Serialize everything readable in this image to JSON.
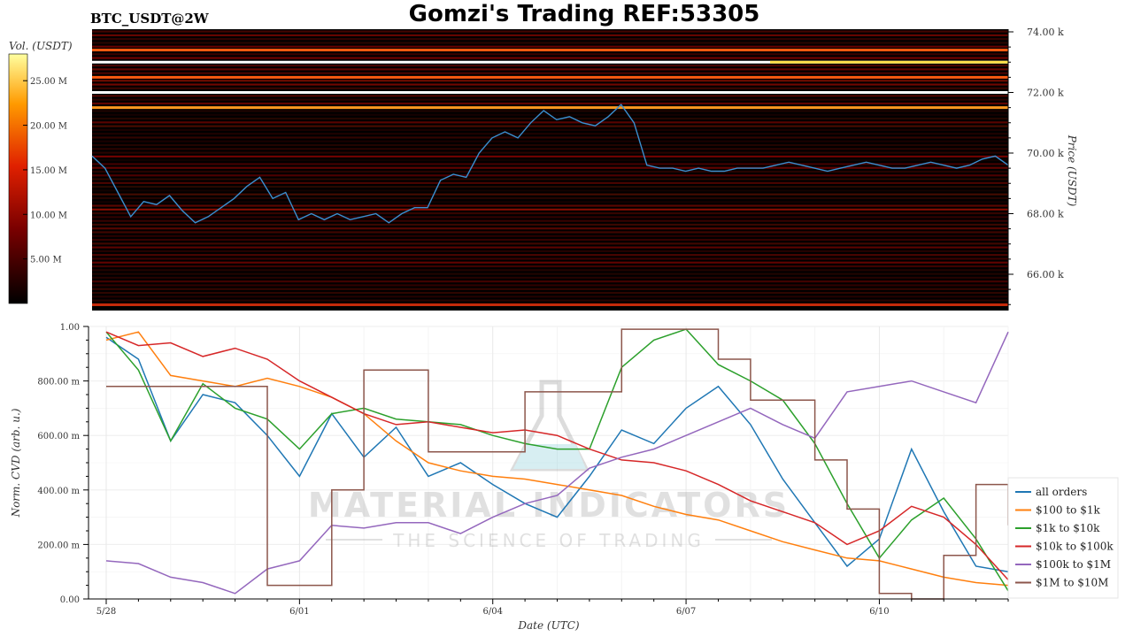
{
  "header": {
    "title": "Gomzi's Trading REF:53305",
    "symbol": "BTC_USDT@2W"
  },
  "watermark": {
    "line1": "MATERIAL INDICATORS",
    "line2": "THE SCIENCE OF TRADING"
  },
  "colors": {
    "price_line": "#3a8fd0",
    "heatmap_bg": "#000000",
    "orange": "#ff7f0e",
    "blue": "#1f77b4",
    "green": "#2ca02c",
    "red": "#d62728",
    "purple": "#9467bd",
    "brown": "#8c564b"
  },
  "chart_data": [
    {
      "type": "heatmap",
      "title": "",
      "ylabel": "Price (USDT)",
      "ylim": [
        65000,
        74000
      ],
      "y_ticks": [
        66000,
        68000,
        70000,
        72000,
        74000
      ],
      "y_tick_labels": [
        "66.00 k",
        "68.00 k",
        "70.00 k",
        "72.00 k",
        "74.00 k"
      ],
      "colorbar": {
        "label": "Vol. (USDT)",
        "range": [
          0,
          28000000
        ],
        "ticks": [
          5000000,
          10000000,
          15000000,
          20000000,
          25000000
        ],
        "tick_labels": [
          "5.00 M",
          "10.00 M",
          "15.00 M",
          "20.00 M",
          "25.00 M"
        ]
      },
      "price_series": {
        "x_days": [
          0,
          0.2,
          0.4,
          0.6,
          0.8,
          1.0,
          1.2,
          1.4,
          1.6,
          1.8,
          2.0,
          2.2,
          2.4,
          2.6,
          2.8,
          3.0,
          3.2,
          3.4,
          3.6,
          3.8,
          4.0,
          4.2,
          4.4,
          4.6,
          4.8,
          5.0,
          5.2,
          5.4,
          5.6,
          5.8,
          6.0,
          6.2,
          6.4,
          6.6,
          6.8,
          7.0,
          7.2,
          7.4,
          7.6,
          7.8,
          8.0,
          8.2,
          8.4,
          8.6,
          8.8,
          9.0,
          9.2,
          9.4,
          9.6,
          9.8,
          10.0,
          10.2,
          10.4,
          10.6,
          10.8,
          11.0,
          11.2,
          11.4,
          11.6,
          11.8,
          12.0,
          12.2,
          12.4,
          12.6,
          12.8,
          13.0,
          13.2,
          13.4,
          13.6,
          13.8,
          14.0,
          14.2
        ],
        "values": [
          69900,
          69500,
          68700,
          67900,
          68400,
          68300,
          68600,
          68100,
          67700,
          67900,
          68200,
          68500,
          68900,
          69200,
          68500,
          68700,
          67800,
          68000,
          67800,
          68000,
          67800,
          67900,
          68000,
          67700,
          68000,
          68200,
          68200,
          69100,
          69300,
          69200,
          70000,
          70500,
          70700,
          70500,
          71000,
          71400,
          71100,
          71200,
          71000,
          70900,
          71200,
          71600,
          71000,
          69600,
          69500,
          69500,
          69400,
          69500,
          69400,
          69400,
          69500,
          69500,
          69500,
          69600,
          69700,
          69600,
          69500,
          69400,
          69500,
          69600,
          69700,
          69600,
          69500,
          69500,
          69600,
          69700,
          69600,
          69500,
          69600,
          69800,
          69900,
          69600
        ]
      },
      "bright_levels": [
        {
          "price": 73000,
          "intensity": 1.0
        },
        {
          "price": 72000,
          "intensity": 1.0
        },
        {
          "price": 71500,
          "intensity": 0.8
        },
        {
          "price": 72500,
          "intensity": 0.7
        },
        {
          "price": 73400,
          "intensity": 0.6
        }
      ]
    },
    {
      "type": "line",
      "title": "",
      "xlabel": "Date (UTC)",
      "ylabel": "Norm. CVD (arb. u.)",
      "ylim": [
        0,
        1
      ],
      "y_ticks": [
        0,
        0.2,
        0.4,
        0.6,
        0.8,
        1.0
      ],
      "y_tick_labels": [
        "0.00",
        "200.00 m",
        "400.00 m",
        "600.00 m",
        "800.00 m",
        "1.00"
      ],
      "x_ticks": [
        0,
        3,
        6,
        9,
        12
      ],
      "x_tick_labels": [
        "5/28",
        "6/01",
        "6/04",
        "6/07",
        "6/10"
      ],
      "legend_position": "right",
      "x_days": [
        0,
        0.5,
        1.0,
        1.5,
        2.0,
        2.5,
        3.0,
        3.5,
        4.0,
        4.5,
        5.0,
        5.5,
        6.0,
        6.5,
        7.0,
        7.5,
        8.0,
        8.5,
        9.0,
        9.5,
        10.0,
        10.5,
        11.0,
        11.5,
        12.0,
        12.5,
        13.0,
        13.5,
        14.0
      ],
      "series": [
        {
          "name": "all orders",
          "color": "#1f77b4",
          "values": [
            0.96,
            0.88,
            0.58,
            0.75,
            0.72,
            0.6,
            0.45,
            0.68,
            0.52,
            0.63,
            0.45,
            0.5,
            0.42,
            0.35,
            0.3,
            0.45,
            0.62,
            0.57,
            0.7,
            0.78,
            0.64,
            0.44,
            0.28,
            0.12,
            0.22,
            0.55,
            0.32,
            0.12,
            0.1
          ]
        },
        {
          "name": "$100 to $1k",
          "color": "#ff7f0e",
          "values": [
            0.95,
            0.98,
            0.82,
            0.8,
            0.78,
            0.81,
            0.78,
            0.74,
            0.68,
            0.58,
            0.5,
            0.47,
            0.45,
            0.44,
            0.42,
            0.4,
            0.38,
            0.34,
            0.31,
            0.29,
            0.25,
            0.21,
            0.18,
            0.15,
            0.14,
            0.11,
            0.08,
            0.06,
            0.05
          ]
        },
        {
          "name": "$1k to $10k",
          "color": "#2ca02c",
          "values": [
            0.98,
            0.84,
            0.58,
            0.79,
            0.7,
            0.66,
            0.55,
            0.68,
            0.7,
            0.66,
            0.65,
            0.64,
            0.6,
            0.57,
            0.55,
            0.55,
            0.85,
            0.95,
            0.99,
            0.86,
            0.8,
            0.73,
            0.57,
            0.35,
            0.15,
            0.29,
            0.37,
            0.22,
            0.03
          ]
        },
        {
          "name": "$10k to $100k",
          "color": "#d62728",
          "values": [
            0.98,
            0.93,
            0.94,
            0.89,
            0.92,
            0.88,
            0.8,
            0.74,
            0.68,
            0.64,
            0.65,
            0.63,
            0.61,
            0.62,
            0.6,
            0.55,
            0.51,
            0.5,
            0.47,
            0.42,
            0.36,
            0.32,
            0.28,
            0.2,
            0.25,
            0.34,
            0.3,
            0.2,
            0.07
          ]
        },
        {
          "name": "$100k to $1M",
          "color": "#9467bd",
          "values": [
            0.14,
            0.13,
            0.08,
            0.06,
            0.02,
            0.11,
            0.14,
            0.27,
            0.26,
            0.28,
            0.28,
            0.24,
            0.3,
            0.35,
            0.38,
            0.48,
            0.52,
            0.55,
            0.6,
            0.65,
            0.7,
            0.64,
            0.59,
            0.76,
            0.78,
            0.8,
            0.76,
            0.72,
            0.98
          ]
        },
        {
          "name": "$1M to $10M",
          "color": "#8c564b",
          "values": [
            0.78,
            0.78,
            0.78,
            0.78,
            0.78,
            0.05,
            0.05,
            0.4,
            0.84,
            0.84,
            0.54,
            0.54,
            0.54,
            0.76,
            0.76,
            0.76,
            0.99,
            0.99,
            0.99,
            0.88,
            0.73,
            0.73,
            0.51,
            0.33,
            0.02,
            0.0,
            0.16,
            0.42,
            0.27
          ]
        }
      ]
    }
  ]
}
